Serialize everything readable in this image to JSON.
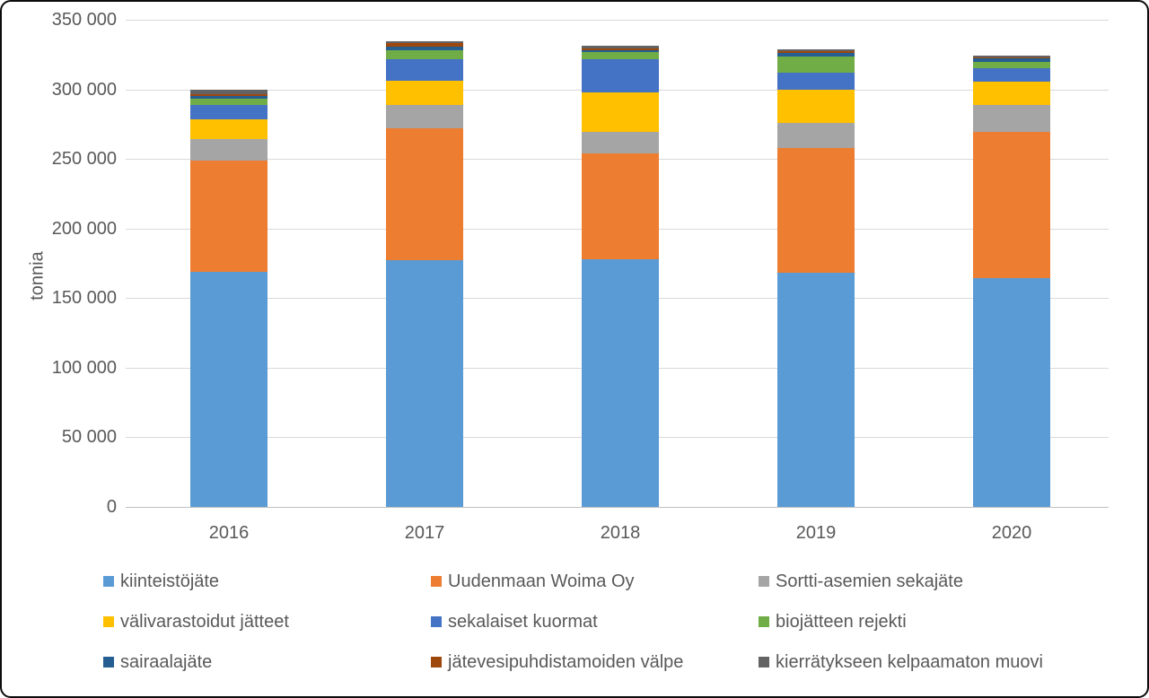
{
  "chart_data": {
    "type": "bar",
    "stacked": true,
    "title": "",
    "xlabel": "",
    "ylabel": "tonnia",
    "ylim": [
      0,
      350000
    ],
    "grid": true,
    "legend_position": "bottom",
    "y_tick_labels": [
      "0",
      "50 000",
      "100 000",
      "150 000",
      "200 000",
      "250 000",
      "300 000",
      "350 000"
    ],
    "y_tick_values": [
      0,
      50000,
      100000,
      150000,
      200000,
      250000,
      300000,
      350000
    ],
    "categories": [
      "2016",
      "2017",
      "2018",
      "2019",
      "2020"
    ],
    "series": [
      {
        "name": "kiinteistöjäte",
        "color": "#5B9BD5",
        "values": [
          169000,
          177000,
          178000,
          168000,
          164500
        ]
      },
      {
        "name": "Uudenmaan Woima Oy",
        "color": "#ED7D31",
        "values": [
          80000,
          95000,
          76000,
          90000,
          105000
        ]
      },
      {
        "name": "Sortti-asemien sekajäte",
        "color": "#A5A5A5",
        "values": [
          15500,
          17000,
          15500,
          18000,
          19500
        ]
      },
      {
        "name": "välivarastoidut jätteet",
        "color": "#FFC000",
        "values": [
          14000,
          17500,
          28500,
          24000,
          16500
        ]
      },
      {
        "name": "sekalaiset kuormat",
        "color": "#4472C4",
        "values": [
          10000,
          15000,
          23500,
          12000,
          10000
        ]
      },
      {
        "name": "biojätteen rejekti",
        "color": "#70AD47",
        "values": [
          4500,
          6500,
          5000,
          11500,
          4500
        ]
      },
      {
        "name": "sairaalajäte",
        "color": "#255E91",
        "values": [
          2000,
          3000,
          1500,
          2500,
          2000
        ]
      },
      {
        "name": "jätevesipuhdistamoiden välpe",
        "color": "#9E480E",
        "values": [
          1300,
          2000,
          1700,
          1300,
          1000
        ]
      },
      {
        "name": "kierrätykseen kelpaamaton muovi",
        "color": "#636363",
        "values": [
          3700,
          1500,
          1500,
          1500,
          1500
        ]
      }
    ]
  }
}
